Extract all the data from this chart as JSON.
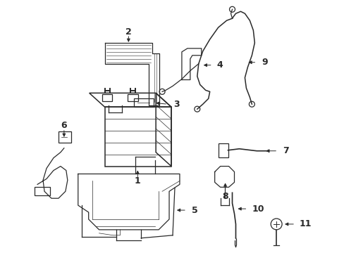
{
  "background_color": "#ffffff",
  "line_color": "#2a2a2a",
  "figsize": [
    4.89,
    3.6
  ],
  "dpi": 100,
  "xlim": [
    0,
    489
  ],
  "ylim": [
    0,
    360
  ]
}
